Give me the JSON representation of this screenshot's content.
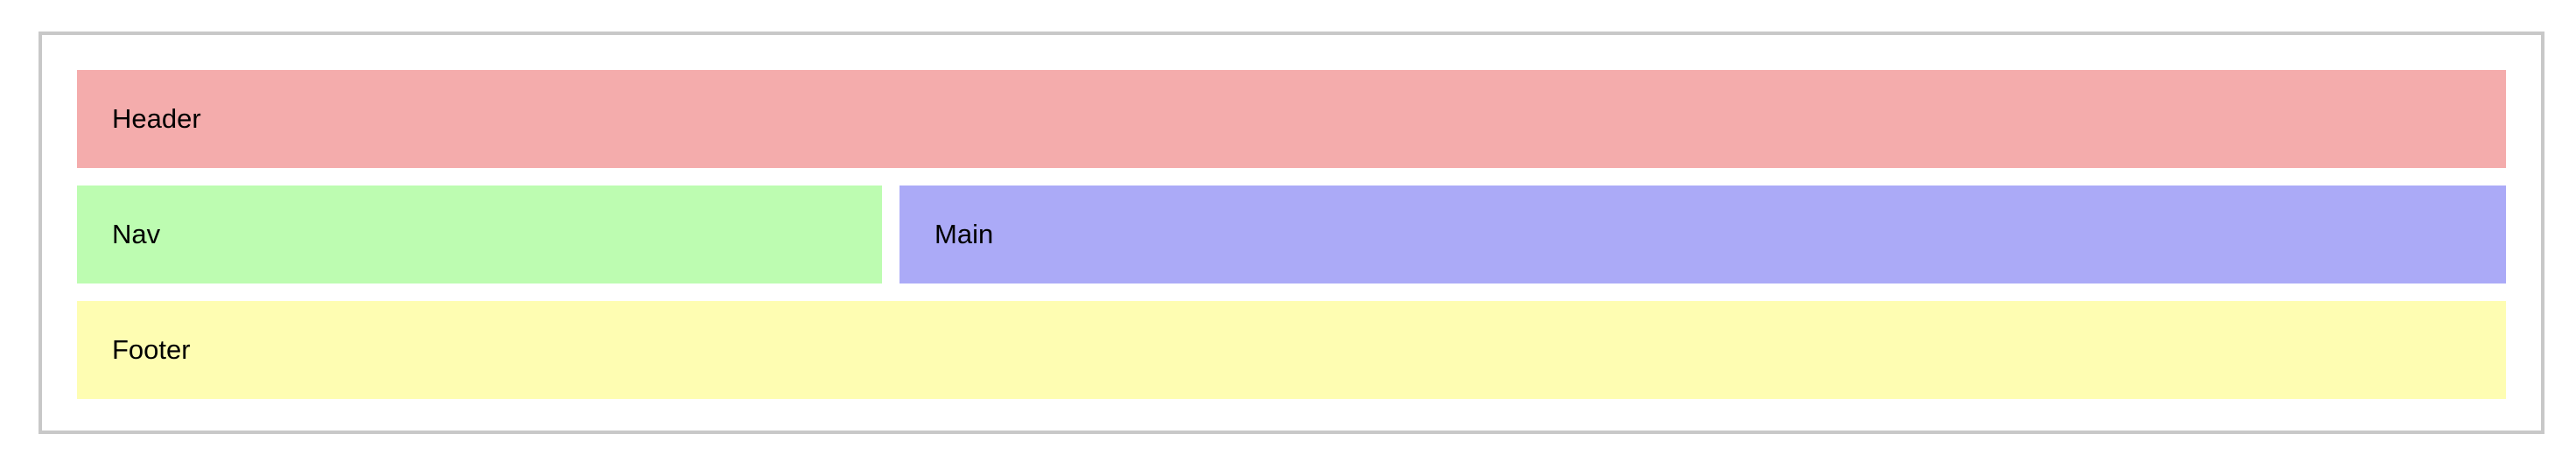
{
  "regions": {
    "header": {
      "label": "Header",
      "color": "#f4acac"
    },
    "nav": {
      "label": "Nav",
      "color": "#bdfcb1"
    },
    "main": {
      "label": "Main",
      "color": "#abaaf7"
    },
    "footer": {
      "label": "Footer",
      "color": "#fefdb2"
    }
  },
  "frame": {
    "border_color": "#c8c8c8"
  }
}
